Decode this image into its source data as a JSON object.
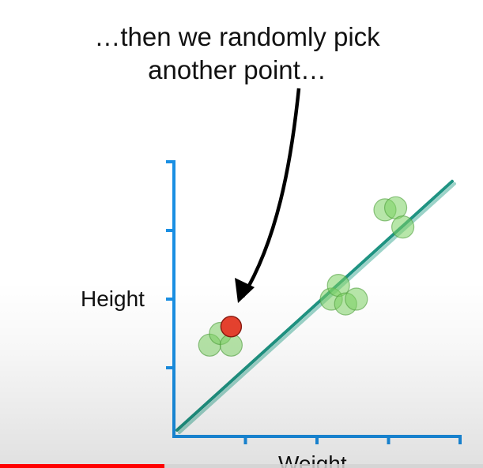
{
  "annotation": {
    "line1": "…then we randomly pick",
    "line2": "another point…"
  },
  "chart_data": {
    "type": "scatter",
    "xlabel": "Weight",
    "ylabel": "Height",
    "x_ticks": 4,
    "y_ticks": 4,
    "xlim": [
      0,
      4
    ],
    "ylim": [
      0,
      4
    ],
    "grid": false,
    "series": [
      {
        "color": "#7cd163",
        "points": [
          [
            0.5,
            1.33
          ],
          [
            0.65,
            1.5
          ],
          [
            0.8,
            1.33
          ],
          [
            2.2,
            2.0
          ],
          [
            2.3,
            2.2
          ],
          [
            2.4,
            1.93
          ],
          [
            2.55,
            2.0
          ],
          [
            2.95,
            3.3
          ],
          [
            3.1,
            3.33
          ],
          [
            3.2,
            3.05
          ]
        ]
      },
      {
        "color": "#e8422f",
        "points": [
          [
            0.8,
            1.6
          ]
        ]
      }
    ],
    "fit_line": {
      "color": "#1f9382",
      "from": [
        0,
        0
      ],
      "to": [
        4,
        3.6
      ]
    },
    "axis_color": "#1a8fe3"
  },
  "video": {
    "progress": 0.34,
    "progress_color": "#ff0000"
  }
}
